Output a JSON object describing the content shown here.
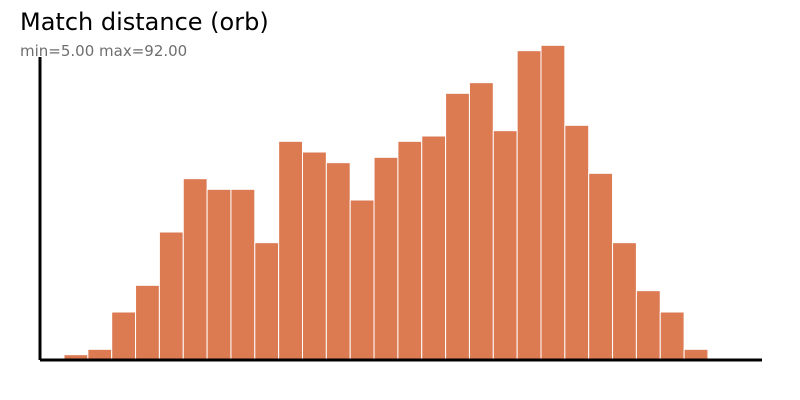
{
  "chart_data": {
    "type": "bar",
    "title": "Match distance (orb)",
    "subtitle": "min=5.00 max=92.00",
    "xlabel": "",
    "ylabel": "",
    "values": [
      1,
      2,
      9,
      14,
      24,
      34,
      32,
      32,
      22,
      41,
      39,
      37,
      30,
      38,
      41,
      42,
      50,
      52,
      43,
      58,
      59,
      44,
      35,
      22,
      13,
      9,
      2
    ],
    "ylim": [
      0,
      60
    ],
    "bar_color": "#dc7a52",
    "bar_edge_color": "#ffffff",
    "axis_color": "#000000",
    "grid": false
  }
}
